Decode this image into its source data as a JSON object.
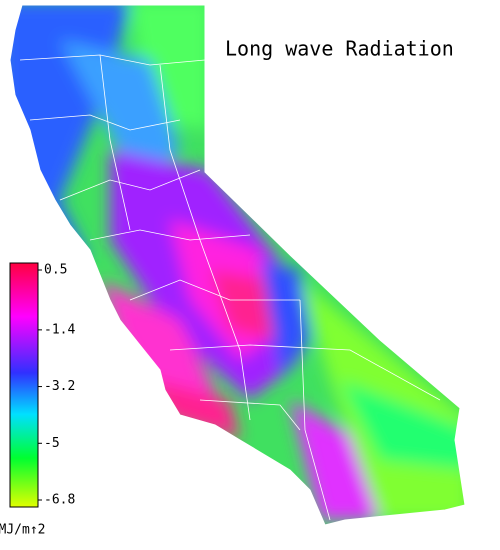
{
  "title": "Long wave Radiation",
  "legend": {
    "ticks": [
      0.5,
      -1.4,
      -3.2,
      -5.0,
      -6.8
    ],
    "unit": "MJ/m↑2"
  }
}
